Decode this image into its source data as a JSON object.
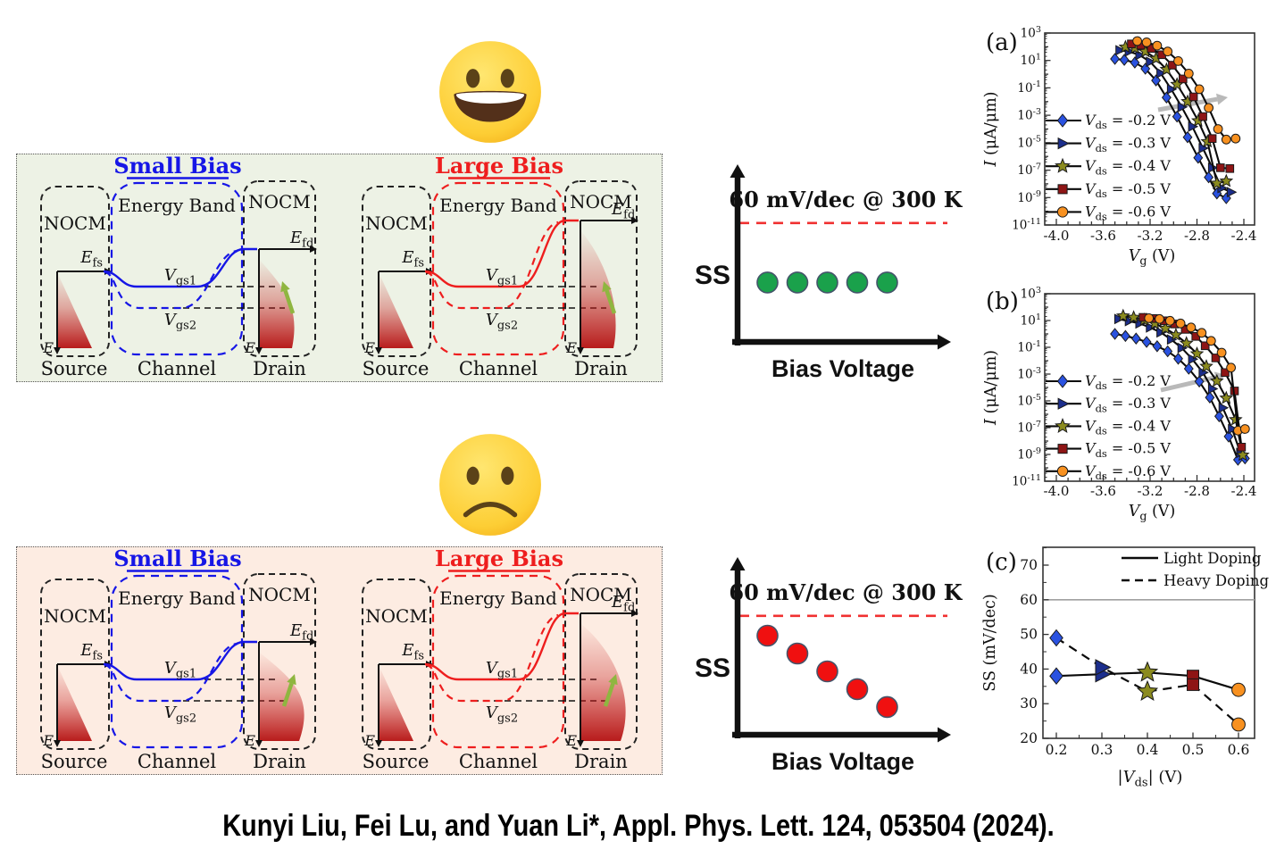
{
  "figure": {
    "citation": "Kunyi Liu, Fei Lu, and Yuan Li*, Appl. Phys. Lett. 124, 053504 (2024).",
    "emojis": {
      "good": "grinning-face",
      "bad": "frowning-face"
    }
  },
  "band_diagram": {
    "labels": {
      "small_bias": "Small Bias",
      "large_bias": "Large Bias",
      "nocm": "NOCM",
      "energy_band": "Energy Band",
      "source": "Source",
      "channel": "Channel",
      "drain": "Drain",
      "efs_parts": [
        {
          "t": "E",
          "i": true
        },
        {
          "t": "fs",
          "sub": true
        }
      ],
      "efd_parts": [
        {
          "t": "E",
          "i": true
        },
        {
          "t": "fd",
          "sub": true
        }
      ],
      "vgs1_parts": [
        {
          "t": "V",
          "i": true
        },
        {
          "t": "gs1",
          "sub": true
        }
      ],
      "vgs2_parts": [
        {
          "t": "V",
          "i": true
        },
        {
          "t": "gs2",
          "sub": true
        }
      ],
      "e_parts": [
        {
          "t": "E",
          "i": true
        }
      ]
    },
    "colors": {
      "small_bias": "#1616e6",
      "large_bias": "#ee1e1e",
      "good_bg": "#edf2e5",
      "bad_bg": "#fdece2",
      "dos_fill": "#c41c1c",
      "green_arrow": "#8fb640"
    }
  },
  "chart_data": [
    {
      "id": "ss_schematic_good",
      "type": "scatter",
      "title": "60 mV/dec @ 300 K",
      "ylabel": "SS",
      "xlabel": "Bias Voltage",
      "ref_line": 60,
      "x": [
        1,
        2,
        3,
        4,
        5
      ],
      "values": [
        30,
        30,
        30,
        30,
        30
      ],
      "dot_color": "#1aa14b",
      "trend": "constant below 60 mV/dec"
    },
    {
      "id": "ss_schematic_bad",
      "type": "scatter",
      "title": "60 mV/dec @ 300 K",
      "ylabel": "SS",
      "xlabel": "Bias Voltage",
      "ref_line": 60,
      "x": [
        1,
        2,
        3,
        4,
        5
      ],
      "values": [
        50,
        41,
        32,
        23,
        14
      ],
      "dot_color": "#f01010",
      "trend": "decreasing with bias"
    },
    {
      "id": "panel_a",
      "panel_label": "(a)",
      "type": "line",
      "xlabel_parts": [
        {
          "t": "V",
          "i": true
        },
        {
          "t": "g",
          "sub": true
        },
        {
          "t": " (V)"
        }
      ],
      "ylabel_parts": [
        {
          "t": "I",
          "i": true
        },
        {
          "t": " (μA/μm)"
        }
      ],
      "xlim": [
        -4.1,
        -2.31
      ],
      "xticks": [
        -4.0,
        -3.6,
        -3.2,
        -2.8,
        -2.4
      ],
      "ylog_range": [
        3,
        -11
      ],
      "ytick_exponents": [
        3,
        1,
        -1,
        -3,
        -5,
        -7,
        -9,
        -11
      ],
      "legend_symbol_parts": [
        {
          "t": "V",
          "i": true
        },
        {
          "t": "ds",
          "sub": true
        }
      ],
      "series": [
        {
          "name": "Vds = -0.2 V",
          "vds": "-0.2 V",
          "marker": "diamond",
          "color": "#2a52e0",
          "x": [
            -3.5,
            -3.42,
            -3.33,
            -3.24,
            -3.15,
            -3.06,
            -2.97,
            -2.88,
            -2.79,
            -2.7,
            -2.63,
            -2.55
          ],
          "y": [
            13,
            11,
            7,
            2.5,
            0.35,
            0.02,
            0.0008,
            2.5e-05,
            8e-07,
            3e-08,
            2e-09,
            9e-10
          ]
        },
        {
          "name": "Vds = -0.3 V",
          "vds": "-0.3 V",
          "marker": "tri-right",
          "color": "#1c2e8c",
          "x": [
            -3.46,
            -3.38,
            -3.29,
            -3.2,
            -3.11,
            -3.02,
            -2.93,
            -2.84,
            -2.75,
            -2.67,
            -2.59,
            -2.51
          ],
          "y": [
            55,
            45,
            25,
            8,
            1.2,
            0.08,
            0.004,
            0.00015,
            4e-06,
            1.5e-07,
            5e-09,
            2.5e-09
          ]
        },
        {
          "name": "Vds = -0.4 V",
          "vds": "-0.4 V",
          "marker": "star",
          "color": "#8b8b1f",
          "x": [
            -3.41,
            -3.33,
            -3.24,
            -3.15,
            -3.06,
            -2.97,
            -2.88,
            -2.79,
            -2.71,
            -2.63,
            -2.55
          ],
          "y": [
            95,
            80,
            45,
            14,
            2.2,
            0.18,
            0.01,
            0.0004,
            1.2e-05,
            1.1e-08,
            1.6e-08
          ]
        },
        {
          "name": "Vds = -0.5 V",
          "vds": "-0.5 V",
          "marker": "square",
          "color": "#8e1515",
          "x": [
            -3.36,
            -3.28,
            -3.19,
            -3.1,
            -3.01,
            -2.92,
            -2.83,
            -2.75,
            -2.67,
            -2.6,
            -2.52
          ],
          "y": [
            160,
            130,
            75,
            26,
            4.5,
            0.45,
            0.022,
            0.0008,
            2e-05,
            1.5e-07,
            1.3e-07
          ]
        },
        {
          "name": "Vds = -0.6 V",
          "vds": "-0.6 V",
          "marker": "circle",
          "color": "#f89120",
          "x": [
            -3.31,
            -3.23,
            -3.14,
            -3.05,
            -2.96,
            -2.87,
            -2.78,
            -2.7,
            -2.62,
            -2.55,
            -2.47
          ],
          "y": [
            260,
            210,
            120,
            45,
            9,
            1.1,
            0.08,
            0.0035,
            0.0001,
            1.7e-05,
            2e-05
          ]
        }
      ]
    },
    {
      "id": "panel_b",
      "panel_label": "(b)",
      "type": "line",
      "xlabel_parts": [
        {
          "t": "V",
          "i": true
        },
        {
          "t": "g",
          "sub": true
        },
        {
          "t": " (V)"
        }
      ],
      "ylabel_parts": [
        {
          "t": "I",
          "i": true
        },
        {
          "t": " (μA/μm)"
        }
      ],
      "xlim": [
        -4.1,
        -2.31
      ],
      "xticks": [
        -4.0,
        -3.6,
        -3.2,
        -2.8,
        -2.4
      ],
      "ylog_range": [
        3,
        -11
      ],
      "ytick_exponents": [
        3,
        1,
        -1,
        -3,
        -5,
        -7,
        -9,
        -11
      ],
      "legend_symbol_parts": [
        {
          "t": "V",
          "i": true
        },
        {
          "t": "ds",
          "sub": true
        }
      ],
      "series": [
        {
          "name": "Vds = -0.2 V",
          "vds": "-0.2 V",
          "marker": "diamond",
          "color": "#2a52e0",
          "x": [
            -3.5,
            -3.41,
            -3.32,
            -3.23,
            -3.14,
            -3.05,
            -2.96,
            -2.87,
            -2.78,
            -2.69,
            -2.61,
            -2.53,
            -2.45,
            -2.39
          ],
          "y": [
            1.0,
            0.7,
            0.45,
            0.25,
            0.12,
            0.05,
            0.014,
            0.0025,
            0.00028,
            1.8e-05,
            7e-07,
            2.2e-08,
            4e-10,
            5e-10
          ]
        },
        {
          "name": "Vds = -0.3 V",
          "vds": "-0.3 V",
          "marker": "tri-right",
          "color": "#1c2e8c",
          "x": [
            -3.47,
            -3.38,
            -3.29,
            -3.2,
            -3.11,
            -3.02,
            -2.93,
            -2.84,
            -2.75,
            -2.67,
            -2.58,
            -2.5,
            -2.43
          ],
          "y": [
            13,
            9,
            6,
            3,
            1.3,
            0.38,
            0.09,
            0.013,
            0.0013,
            8e-05,
            3e-06,
            8e-08,
            1.3e-09
          ]
        },
        {
          "name": "Vds = -0.4 V",
          "vds": "-0.4 V",
          "marker": "star",
          "color": "#8b8b1f",
          "x": [
            -3.43,
            -3.34,
            -3.25,
            -3.16,
            -3.07,
            -2.98,
            -2.89,
            -2.8,
            -2.72,
            -2.63,
            -2.55,
            -2.47,
            -2.41
          ],
          "y": [
            22,
            17,
            11,
            6,
            2.6,
            0.85,
            0.2,
            0.033,
            0.0038,
            0.0003,
            1.6e-05,
            4e-07,
            9e-10
          ]
        },
        {
          "name": "Vds = -0.5 V",
          "vds": "-0.5 V",
          "marker": "square",
          "color": "#8e1515",
          "x": [
            -3.26,
            -3.17,
            -3.08,
            -2.99,
            -2.9,
            -2.81,
            -2.73,
            -2.64,
            -2.56,
            -2.48,
            -2.42
          ],
          "y": [
            17,
            14,
            9.5,
            5.5,
            2.2,
            0.65,
            0.13,
            0.016,
            0.0013,
            5.5e-05,
            3.5e-09
          ]
        },
        {
          "name": "Vds = -0.6 V",
          "vds": "-0.6 V",
          "marker": "circle",
          "color": "#f89120",
          "x": [
            -3.21,
            -3.12,
            -3.03,
            -2.94,
            -2.85,
            -2.76,
            -2.68,
            -2.59,
            -2.51,
            -2.45,
            -2.39
          ],
          "y": [
            15,
            13,
            9.5,
            6,
            3,
            1.2,
            0.3,
            0.04,
            0.003,
            6e-08,
            8e-08
          ]
        }
      ]
    },
    {
      "id": "panel_c",
      "panel_label": "(c)",
      "type": "scatter-line",
      "xlabel_parts": [
        {
          "t": "|"
        },
        {
          "t": "V",
          "i": true
        },
        {
          "t": "ds",
          "sub": true
        },
        {
          "t": "| (V)"
        }
      ],
      "ylabel": "SS (mV/dec)",
      "xticks": [
        0.2,
        0.3,
        0.4,
        0.5,
        0.6
      ],
      "yticks": [
        20,
        30,
        40,
        50,
        60,
        70
      ],
      "ylim": [
        20,
        75
      ],
      "ref_line": 60,
      "x": [
        0.2,
        0.3,
        0.4,
        0.5,
        0.6
      ],
      "point_markers": [
        "diamond",
        "tri-right",
        "star",
        "square",
        "circle"
      ],
      "point_colors": [
        "#2a52e0",
        "#1c2e8c",
        "#8b8b1f",
        "#8e1515",
        "#f89120"
      ],
      "series": [
        {
          "name": "Light Doping",
          "style": "solid",
          "values": [
            38,
            38.5,
            39,
            38,
            34
          ]
        },
        {
          "name": "Heavy Doping",
          "style": "dashed",
          "values": [
            49,
            40.5,
            33.5,
            35.5,
            24
          ]
        }
      ]
    }
  ]
}
